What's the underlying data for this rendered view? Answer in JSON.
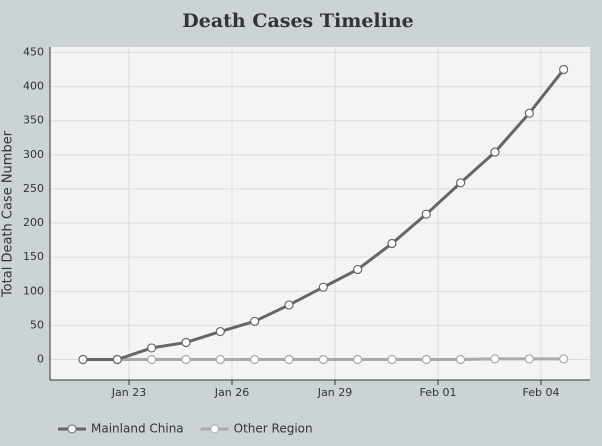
{
  "chart_data": {
    "type": "line",
    "title": "Death Cases Timeline",
    "y_label": "Total Death Case Number",
    "categories": [
      null,
      null,
      "Jan 23",
      null,
      null,
      "Jan 26",
      null,
      null,
      "Jan 29",
      null,
      null,
      "Feb 01",
      null,
      null,
      "Feb 04"
    ],
    "series": [
      {
        "name": "Mainland China",
        "color": "#666666",
        "values": [
          0,
          0,
          17,
          25,
          41,
          56,
          80,
          106,
          132,
          170,
          213,
          259,
          304,
          361,
          425
        ]
      },
      {
        "name": "Other Region",
        "color": "#aaaaaa",
        "values": [
          0,
          0,
          0,
          0,
          0,
          0,
          0,
          0,
          0,
          0,
          0,
          0,
          1,
          1,
          1
        ]
      }
    ],
    "ylim": [
      -30,
      458
    ],
    "yticks": [
      0,
      50,
      100,
      150,
      200,
      250,
      300,
      350,
      400,
      450
    ],
    "grid": true
  }
}
